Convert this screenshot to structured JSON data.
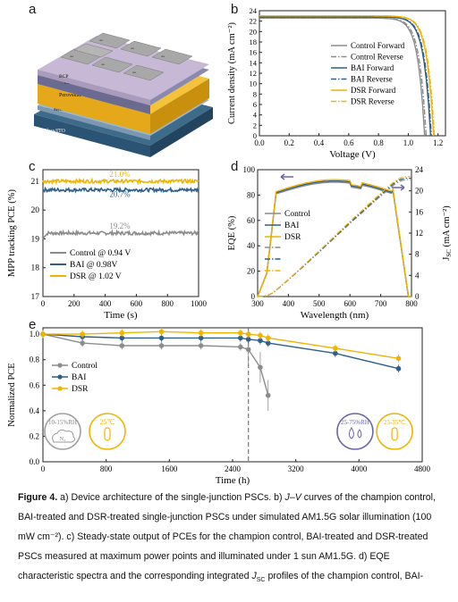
{
  "panels": {
    "a": {
      "label": "a",
      "layers": [
        "Au",
        "BCP",
        "C60",
        "Perovskite",
        "MeO-2PACz",
        "Glass/ITO"
      ]
    },
    "b": {
      "label": "b",
      "xlabel": "Voltage (V)",
      "ylabel": "Current density (mA cm⁻²)",
      "xticks": [
        "0.0",
        "0.2",
        "0.4",
        "0.6",
        "0.8",
        "1.0",
        "1.2"
      ],
      "yticks": [
        "0",
        "2",
        "4",
        "6",
        "8",
        "10",
        "12",
        "14",
        "16",
        "18",
        "20",
        "22",
        "24"
      ],
      "legend": [
        "Control Forward",
        "Control Reverse",
        "BAI Forward",
        "BAI Reverse",
        "DSR Forward",
        "DSR Reverse"
      ]
    },
    "c": {
      "label": "c",
      "xlabel": "Time (s)",
      "ylabel": "MPP tracking PCE (%)",
      "xticks": [
        "0",
        "200",
        "400",
        "600",
        "800",
        "1000"
      ],
      "yticks": [
        "17",
        "18",
        "19",
        "20",
        "21"
      ],
      "annotations": [
        "21.0%",
        "20.7%",
        "19.2%"
      ],
      "legend": [
        "Control @ 0.94 V",
        "BAI @ 0.98V",
        "DSR @ 1.02 V"
      ]
    },
    "d": {
      "label": "d",
      "xlabel": "Wavelength (nm)",
      "ylabel_left": "EQE (%)",
      "ylabel_right": "J",
      "ylabel_right_sub": "SC",
      "ylabel_right_unit": " (mA cm⁻²)",
      "xticks": [
        "300",
        "400",
        "500",
        "600",
        "700",
        "800"
      ],
      "yticks_left": [
        "0",
        "20",
        "40",
        "60",
        "80",
        "100"
      ],
      "yticks_right": [
        "0",
        "4",
        "8",
        "12",
        "16",
        "20",
        "24"
      ],
      "legend": [
        "Control",
        "BAI",
        "DSR"
      ]
    },
    "e": {
      "label": "e",
      "xlabel": "Time (h)",
      "ylabel": "Normalized PCE",
      "xticks": [
        "0",
        "800",
        "1600",
        "2400",
        "3200",
        "4000",
        "4800"
      ],
      "yticks": [
        "0.0",
        "0.2",
        "0.4",
        "0.6",
        "0.8",
        "1.0"
      ],
      "legend": [
        "Control",
        "BAI",
        "DSR"
      ],
      "badge1": "10-15%RH",
      "badge1_sub": "N₂",
      "badge2": "25℃",
      "badge3": "25-75%RH",
      "badge4": "25-35℃"
    }
  },
  "chart_data": [
    {
      "type": "line",
      "panel": "b",
      "xlabel": "Voltage (V)",
      "ylabel": "Current density (mA cm⁻²)",
      "xlim": [
        0,
        1.25
      ],
      "ylim": [
        0,
        24
      ],
      "series": [
        {
          "name": "Control Forward",
          "color": "#8c8c8c",
          "style": "solid",
          "jsc": 22.6,
          "voc": 1.11
        },
        {
          "name": "Control Reverse",
          "color": "#8c8c8c",
          "style": "dashdot",
          "jsc": 22.6,
          "voc": 1.12
        },
        {
          "name": "BAI Forward",
          "color": "#2f5f8a",
          "style": "solid",
          "jsc": 22.8,
          "voc": 1.15
        },
        {
          "name": "BAI Reverse",
          "color": "#2f5f8a",
          "style": "dashdot",
          "jsc": 22.8,
          "voc": 1.155
        },
        {
          "name": "DSR Forward",
          "color": "#f0b400",
          "style": "solid",
          "jsc": 23.0,
          "voc": 1.17
        },
        {
          "name": "DSR Reverse",
          "color": "#f0b400",
          "style": "dashdot",
          "jsc": 23.0,
          "voc": 1.175
        }
      ]
    },
    {
      "type": "line",
      "panel": "c",
      "xlabel": "Time (s)",
      "ylabel": "MPP tracking PCE (%)",
      "xlim": [
        0,
        1000
      ],
      "ylim": [
        17,
        21.4
      ],
      "series": [
        {
          "name": "Control @ 0.94 V",
          "color": "#8c8c8c",
          "mean": 19.2
        },
        {
          "name": "BAI @ 0.98V",
          "color": "#2f5f8a",
          "mean": 20.7
        },
        {
          "name": "DSR @ 1.02 V",
          "color": "#f0b400",
          "mean": 21.0
        }
      ]
    },
    {
      "type": "line",
      "panel": "d",
      "xlabel": "Wavelength (nm)",
      "ylabel": "EQE (%)",
      "xlim": [
        300,
        800
      ],
      "ylim": [
        0,
        100
      ],
      "y2lim": [
        0,
        24
      ],
      "series": [
        {
          "name": "Control",
          "color": "#8c8c8c",
          "peak": 92,
          "jsc_end": 22.1
        },
        {
          "name": "BAI",
          "color": "#2f5f8a",
          "peak": 93,
          "jsc_end": 22.4
        },
        {
          "name": "DSR",
          "color": "#f0b400",
          "peak": 94,
          "jsc_end": 22.7
        }
      ]
    },
    {
      "type": "line",
      "panel": "e",
      "xlabel": "Time (h)",
      "ylabel": "Normalized PCE",
      "xlim": [
        0,
        4800
      ],
      "ylim": [
        0,
        1.05
      ],
      "series": [
        {
          "name": "Control",
          "color": "#8c8c8c",
          "x": [
            0,
            500,
            1000,
            1500,
            2000,
            2500,
            2600,
            2750,
            2850
          ],
          "y": [
            1.0,
            0.93,
            0.91,
            0.91,
            0.91,
            0.9,
            0.88,
            0.74,
            0.52
          ]
        },
        {
          "name": "BAI",
          "color": "#2f5f8a",
          "x": [
            0,
            500,
            1000,
            1500,
            2000,
            2500,
            2600,
            2750,
            2850,
            3700,
            4500
          ],
          "y": [
            1.0,
            0.98,
            0.97,
            0.97,
            0.97,
            0.97,
            0.96,
            0.95,
            0.93,
            0.85,
            0.73
          ]
        },
        {
          "name": "DSR",
          "color": "#f0b400",
          "x": [
            0,
            500,
            1000,
            1500,
            2000,
            2500,
            2600,
            2750,
            2850,
            3700,
            4500
          ],
          "y": [
            1.0,
            1.0,
            1.01,
            1.02,
            1.01,
            1.01,
            1.0,
            0.99,
            0.97,
            0.89,
            0.81
          ]
        }
      ]
    }
  ],
  "caption": {
    "line1_bold": "Figure 4.",
    "line1": " a) Device architecture of the single-junction PSCs. b) ",
    "line1_jv": "J–V",
    "line1_end": " curves of the champion control,",
    "line2": "BAI-treated and DSR-treated single-junction PSCs under simulated AM1.5G solar illumination (100",
    "line3": "mW cm⁻²). c) Steady-state output of PCEs for the champion control, BAI-treated and DSR-treated",
    "line4": "PSCs measured at maximum power points and illuminated under 1 sun AM1.5G. d) EQE",
    "line5_a": "characteristic spectra and the corresponding integrated ",
    "line5_j": "J",
    "line5_sub": "SC",
    "line5_b": " profiles of the champion control, BAI-"
  }
}
